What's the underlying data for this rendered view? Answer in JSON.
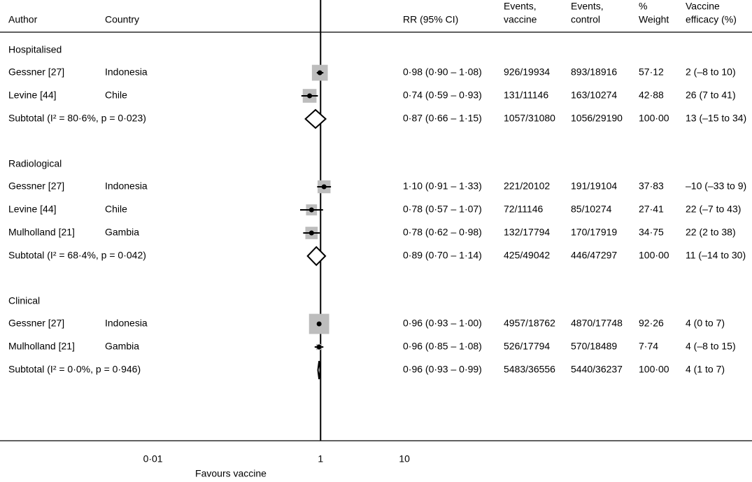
{
  "chart_data": {
    "type": "forest",
    "log": true,
    "columns": {
      "author": "Author",
      "country": "Country",
      "rr": "RR (95% CI)",
      "events_vaccine": [
        "Events,",
        "vaccine"
      ],
      "events_control": [
        "Events,",
        "control"
      ],
      "weight": [
        "%",
        "Weight"
      ],
      "efficacy": [
        "Vaccine",
        "efficacy (%)"
      ]
    },
    "groups": [
      {
        "name": "Hospitalised",
        "studies": [
          {
            "author": "Gessner [27]",
            "country": "Indonesia",
            "rr": {
              "value": 0.98,
              "lo": 0.9,
              "hi": 1.08,
              "label": "0·98 (0·90 – 1·08)"
            },
            "events_vaccine": "926/19934",
            "events_control": "893/18916",
            "weight": {
              "value": 57.12,
              "label": "57·12"
            },
            "efficacy": "2 (–8 to 10)"
          },
          {
            "author": "Levine [44]",
            "country": "Chile",
            "rr": {
              "value": 0.74,
              "lo": 0.59,
              "hi": 0.93,
              "label": "0·74 (0·59 – 0·93)"
            },
            "events_vaccine": "131/11146",
            "events_control": "163/10274",
            "weight": {
              "value": 42.88,
              "label": "42·88"
            },
            "efficacy": "26 (7 to 41)"
          }
        ],
        "subtotal": {
          "label": "Subtotal  (I² = 80·6%, p = 0·023)",
          "rr": {
            "value": 0.87,
            "lo": 0.66,
            "hi": 1.15,
            "label": "0·87 (0·66 – 1·15)"
          },
          "events_vaccine": "1057/31080",
          "events_control": "1056/29190",
          "weight": {
            "value": 100,
            "label": "100·00"
          },
          "efficacy": "13 (–15 to 34)"
        }
      },
      {
        "name": "Radiological",
        "studies": [
          {
            "author": "Gessner [27]",
            "country": "Indonesia",
            "rr": {
              "value": 1.1,
              "lo": 0.91,
              "hi": 1.33,
              "label": "1·10 (0·91 – 1·33)"
            },
            "events_vaccine": "221/20102",
            "events_control": "191/19104",
            "weight": {
              "value": 37.83,
              "label": "37·83"
            },
            "efficacy": "–10 (–33 to 9)"
          },
          {
            "author": "Levine [44]",
            "country": "Chile",
            "rr": {
              "value": 0.78,
              "lo": 0.57,
              "hi": 1.07,
              "label": "0·78 (0·57 – 1·07)"
            },
            "events_vaccine": "72/11146",
            "events_control": "85/10274",
            "weight": {
              "value": 27.41,
              "label": "27·41"
            },
            "efficacy": "22 (–7 to 43)"
          },
          {
            "author": "Mulholland [21]",
            "country": "Gambia",
            "rr": {
              "value": 0.78,
              "lo": 0.62,
              "hi": 0.98,
              "label": "0·78 (0·62 – 0·98)"
            },
            "events_vaccine": "132/17794",
            "events_control": "170/17919",
            "weight": {
              "value": 34.75,
              "label": "34·75"
            },
            "efficacy": "22 (2 to 38)"
          }
        ],
        "subtotal": {
          "label": "Subtotal  (I² = 68·4%, p = 0·042)",
          "rr": {
            "value": 0.89,
            "lo": 0.7,
            "hi": 1.14,
            "label": "0·89 (0·70 – 1·14)"
          },
          "events_vaccine": "425/49042",
          "events_control": "446/47297",
          "weight": {
            "value": 100,
            "label": "100·00"
          },
          "efficacy": "11 (–14 to 30)"
        }
      },
      {
        "name": "Clinical",
        "studies": [
          {
            "author": "Gessner [27]",
            "country": "Indonesia",
            "rr": {
              "value": 0.96,
              "lo": 0.93,
              "hi": 1.0,
              "label": "0·96 (0·93 – 1·00)"
            },
            "events_vaccine": "4957/18762",
            "events_control": "4870/17748",
            "weight": {
              "value": 92.26,
              "label": "92·26"
            },
            "efficacy": "4 (0 to 7)"
          },
          {
            "author": "Mulholland [21]",
            "country": "Gambia",
            "rr": {
              "value": 0.96,
              "lo": 0.85,
              "hi": 1.08,
              "label": "0·96 (0·85 – 1·08)"
            },
            "events_vaccine": "526/17794",
            "events_control": "570/18489",
            "weight": {
              "value": 7.74,
              "label": "7·74"
            },
            "efficacy": "4 (–8 to 15)"
          }
        ],
        "subtotal": {
          "label": "Subtotal  (I² = 0·0%, p = 0·946)",
          "rr": {
            "value": 0.96,
            "lo": 0.93,
            "hi": 0.99,
            "label": "0·96 (0·93 – 0·99)"
          },
          "events_vaccine": "5483/36556",
          "events_control": "5440/36237",
          "weight": {
            "value": 100,
            "label": "100·00"
          },
          "efficacy": "4 (1 to 7)"
        }
      }
    ],
    "xlim": [
      0.00015,
      140000
    ],
    "xticks": [
      {
        "value": 0.01,
        "label": "0·01"
      },
      1,
      10
    ],
    "xlabel": "Favours vaccine"
  }
}
